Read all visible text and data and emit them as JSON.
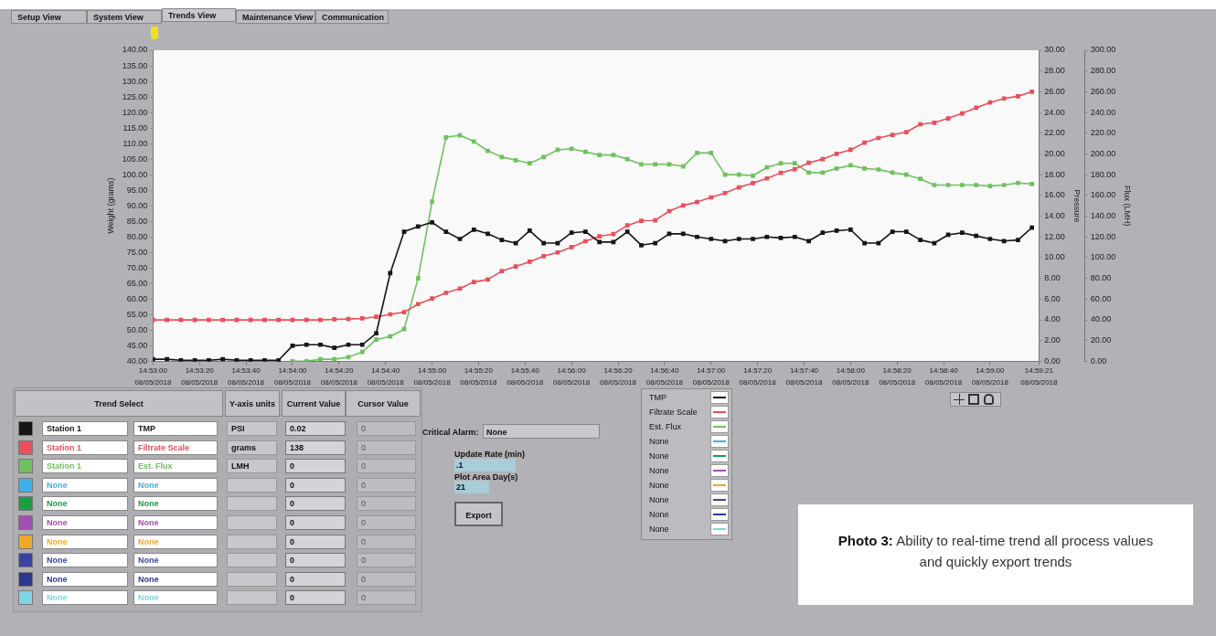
{
  "chart_data": {
    "type": "line",
    "ylabel": "Weight (grams)",
    "y2label": "Pressure",
    "y3label": "Flux (LMH)",
    "x": [
      14.88333,
      14.885,
      14.88667,
      14.88833,
      14.89,
      14.89167,
      14.89333,
      14.895,
      14.89667,
      14.89833,
      14.9,
      14.90167,
      14.90333,
      14.905,
      14.90667,
      14.90833,
      14.91,
      14.91167,
      14.91333,
      14.915,
      14.91667,
      14.91833,
      14.92,
      14.92167,
      14.92333,
      14.925,
      14.92667,
      14.92833,
      14.93,
      14.93167,
      14.93333,
      14.935,
      14.93667,
      14.93833,
      14.94,
      14.94167,
      14.94333,
      14.945,
      14.94667,
      14.94833,
      14.95,
      14.95167,
      14.95333,
      14.955,
      14.95667,
      14.95833,
      14.96,
      14.96167,
      14.96333,
      14.965,
      14.96667,
      14.96833,
      14.97,
      14.97167,
      14.97333,
      14.975,
      14.97667,
      14.97833,
      14.98,
      14.98167,
      14.98333,
      14.985,
      14.98667,
      14.98833
    ],
    "series": [
      {
        "name": "TMP",
        "color": "#151515",
        "axis": "y2",
        "values": [
          0.2,
          0.2,
          0.1,
          0.1,
          0.1,
          0.2,
          0.1,
          0.1,
          0.1,
          0.1,
          1.5,
          1.6,
          1.6,
          1.3,
          1.6,
          1.6,
          2.7,
          8.5,
          12.5,
          13.0,
          13.4,
          12.5,
          11.8,
          12.7,
          12.3,
          11.7,
          11.4,
          12.6,
          11.4,
          11.4,
          12.4,
          12.5,
          11.5,
          11.5,
          12.5,
          11.2,
          11.4,
          12.3,
          12.3,
          12.0,
          11.8,
          11.6,
          11.8,
          11.8,
          12.0,
          11.9,
          12.0,
          11.6,
          12.4,
          12.6,
          12.7,
          11.4,
          11.4,
          12.5,
          12.5,
          11.7,
          11.4,
          12.2,
          12.4,
          12.1,
          11.8,
          11.6,
          11.7,
          12.9
        ]
      },
      {
        "name": "Filtrate Scale",
        "color": "#e8505c",
        "values": [
          53.3,
          53.3,
          53.3,
          53.3,
          53.3,
          53.3,
          53.3,
          53.3,
          53.3,
          53.3,
          53.3,
          53.3,
          53.3,
          53.5,
          53.6,
          53.8,
          54.3,
          55.1,
          55.8,
          58.4,
          60.2,
          62.0,
          63.4,
          65.5,
          66.3,
          69.0,
          70.5,
          72.0,
          73.8,
          75.0,
          76.7,
          78.6,
          80.2,
          80.9,
          83.7,
          85.2,
          85.3,
          88.3,
          90.1,
          91.2,
          92.7,
          94.1,
          95.9,
          97.3,
          98.8,
          100.6,
          101.8,
          103.8,
          105.0,
          106.7,
          108.0,
          110.3,
          111.8,
          112.8,
          113.7,
          116.2,
          116.7,
          118.1,
          119.7,
          121.5,
          123.2,
          124.5,
          125.2,
          126.7
        ]
      },
      {
        "name": "Est. Flux",
        "color": "#70c060",
        "axis": "y3",
        "values": [
          null,
          null,
          null,
          null,
          null,
          null,
          null,
          null,
          null,
          null,
          0,
          0,
          2,
          2,
          4,
          9,
          21,
          24,
          31,
          80,
          154,
          216,
          218,
          212,
          203,
          197,
          194,
          191,
          197,
          204,
          205,
          202,
          199,
          199,
          195,
          190,
          190,
          190,
          188,
          201,
          201,
          180,
          180,
          179,
          187,
          191,
          191,
          182,
          182,
          186,
          189,
          186,
          185,
          182,
          180,
          176,
          170,
          170,
          170,
          170,
          169,
          170,
          172,
          171
        ]
      },
      {
        "name": "None",
        "color": "#40b0e8",
        "values": [
          null,
          null,
          null,
          null,
          null,
          null,
          null,
          null,
          null,
          null,
          null,
          null,
          null,
          null,
          null,
          null,
          null,
          null,
          null,
          null,
          null,
          null,
          null,
          null,
          null,
          null,
          null,
          null,
          null,
          null,
          null,
          null,
          null,
          null,
          null,
          null,
          null,
          null,
          null,
          null,
          null,
          null,
          null,
          null,
          null,
          null,
          null,
          null,
          null,
          null,
          null,
          null,
          null,
          null,
          null,
          null,
          null,
          null,
          null,
          null,
          null,
          null,
          null,
          null
        ]
      },
      {
        "name": "None",
        "color": "#18a040",
        "values": [
          null,
          null,
          null,
          null,
          null,
          null,
          null,
          null,
          null,
          null,
          null,
          null,
          null,
          null,
          null,
          null,
          null,
          null,
          null,
          null,
          null,
          null,
          null,
          null,
          null,
          null,
          null,
          null,
          null,
          null,
          null,
          null,
          null,
          null,
          null,
          null,
          null,
          null,
          null,
          null,
          null,
          null,
          null,
          null,
          null,
          null,
          null,
          null,
          null,
          null,
          null,
          null,
          null,
          null,
          null,
          null,
          null,
          null,
          null,
          null,
          null,
          null,
          null,
          null
        ]
      },
      {
        "name": "None",
        "color": "#a050b0",
        "values": [
          null,
          null,
          null,
          null,
          null,
          null,
          null,
          null,
          null,
          null,
          null,
          null,
          null,
          null,
          null,
          null,
          null,
          null,
          null,
          null,
          null,
          null,
          null,
          null,
          null,
          null,
          null,
          null,
          null,
          null,
          null,
          null,
          null,
          null,
          null,
          null,
          null,
          null,
          null,
          null,
          null,
          null,
          null,
          null,
          null,
          null,
          null,
          null,
          null,
          null,
          null,
          null,
          null,
          null,
          null,
          null,
          null,
          null,
          null,
          null,
          null,
          null,
          null,
          null
        ]
      },
      {
        "name": "None",
        "color": "#f0a828",
        "values": [
          null,
          null,
          null,
          null,
          null,
          null,
          null,
          null,
          null,
          null,
          null,
          null,
          null,
          null,
          null,
          null,
          null,
          null,
          null,
          null,
          null,
          null,
          null,
          null,
          null,
          null,
          null,
          null,
          null,
          null,
          null,
          null,
          null,
          null,
          null,
          null,
          null,
          null,
          null,
          null,
          null,
          null,
          null,
          null,
          null,
          null,
          null,
          null,
          null,
          null,
          null,
          null,
          null,
          null,
          null,
          null,
          null,
          null,
          null,
          null,
          null,
          null,
          null,
          null
        ]
      },
      {
        "name": "None",
        "color": "#3a44a0",
        "values": [
          null,
          null,
          null,
          null,
          null,
          null,
          null,
          null,
          null,
          null,
          null,
          null,
          null,
          null,
          null,
          null,
          null,
          null,
          null,
          null,
          null,
          null,
          null,
          null,
          null,
          null,
          null,
          null,
          null,
          null,
          null,
          null,
          null,
          null,
          null,
          null,
          null,
          null,
          null,
          null,
          null,
          null,
          null,
          null,
          null,
          null,
          null,
          null,
          null,
          null,
          null,
          null,
          null,
          null,
          null,
          null,
          null,
          null,
          null,
          null,
          null,
          null,
          null,
          null
        ]
      },
      {
        "name": "None",
        "color": "#283890",
        "values": [
          null,
          null,
          null,
          null,
          null,
          null,
          null,
          null,
          null,
          null,
          null,
          null,
          null,
          null,
          null,
          null,
          null,
          null,
          null,
          null,
          null,
          null,
          null,
          null,
          null,
          null,
          null,
          null,
          null,
          null,
          null,
          null,
          null,
          null,
          null,
          null,
          null,
          null,
          null,
          null,
          null,
          null,
          null,
          null,
          null,
          null,
          null,
          null,
          null,
          null,
          null,
          null,
          null,
          null,
          null,
          null,
          null,
          null,
          null,
          null,
          null,
          null,
          null,
          null
        ]
      },
      {
        "name": "None",
        "color": "#80d4e4",
        "values": [
          null,
          null,
          null,
          null,
          null,
          null,
          null,
          null,
          null,
          null,
          null,
          null,
          null,
          null,
          null,
          null,
          null,
          null,
          null,
          null,
          null,
          null,
          null,
          null,
          null,
          null,
          null,
          null,
          null,
          null,
          null,
          null,
          null,
          null,
          null,
          null,
          null,
          null,
          null,
          null,
          null,
          null,
          null,
          null,
          null,
          null,
          null,
          null,
          null,
          null,
          null,
          null,
          null,
          null,
          null,
          null,
          null,
          null,
          null,
          null,
          null,
          null,
          null,
          null
        ]
      }
    ],
    "xlim": [
      14.88333,
      14.98917
    ],
    "xticks": [
      {
        "value": 14.88333,
        "label": "14:53:00"
      },
      {
        "value": 14.88889,
        "label": "14:53:20"
      },
      {
        "value": 14.89444,
        "label": "14:53:40"
      },
      {
        "value": 14.9,
        "label": "14:54:00"
      },
      {
        "value": 14.90556,
        "label": "14:54:20"
      },
      {
        "value": 14.91111,
        "label": "14:54:40"
      },
      {
        "value": 14.91667,
        "label": "14:55:00"
      },
      {
        "value": 14.92222,
        "label": "14:55:20"
      },
      {
        "value": 14.92778,
        "label": "14:55:40"
      },
      {
        "value": 14.93333,
        "label": "14:56:00"
      },
      {
        "value": 14.93889,
        "label": "14:56:20"
      },
      {
        "value": 14.94444,
        "label": "14:56:40"
      },
      {
        "value": 14.95,
        "label": "14:57:00"
      },
      {
        "value": 14.95556,
        "label": "14:57:20"
      },
      {
        "value": 14.96111,
        "label": "14:57:40"
      },
      {
        "value": 14.96667,
        "label": "14:58:00"
      },
      {
        "value": 14.97222,
        "label": "14:58:20"
      },
      {
        "value": 14.97778,
        "label": "14:58:40"
      },
      {
        "value": 14.98333,
        "label": "14:59:00"
      },
      {
        "value": 14.98917,
        "label": "14:59:21"
      }
    ],
    "ylim": [
      40,
      140
    ],
    "yticks": [
      {
        "value": 40,
        "label": "40.00"
      },
      {
        "value": 45,
        "label": "45.00"
      },
      {
        "value": 50,
        "label": "50.00"
      },
      {
        "value": 55,
        "label": "55.00"
      },
      {
        "value": 60,
        "label": "60.00"
      },
      {
        "value": 65,
        "label": "65.00"
      },
      {
        "value": 70,
        "label": "70.00"
      },
      {
        "value": 75,
        "label": "75.00"
      },
      {
        "value": 80,
        "label": "80.00"
      },
      {
        "value": 85,
        "label": "85.00"
      },
      {
        "value": 90,
        "label": "90.00"
      },
      {
        "value": 95,
        "label": "95.00"
      },
      {
        "value": 100,
        "label": "100.00"
      },
      {
        "value": 105,
        "label": "105.00"
      },
      {
        "value": 110,
        "label": "110.00"
      },
      {
        "value": 115,
        "label": "115.00"
      },
      {
        "value": 120,
        "label": "120.00"
      },
      {
        "value": 125,
        "label": "125.00"
      },
      {
        "value": 130,
        "label": "130.00"
      },
      {
        "value": 135,
        "label": "135.00"
      },
      {
        "value": 140,
        "label": "140.00"
      }
    ],
    "y2lim": [
      0,
      30
    ],
    "y2ticks": [
      {
        "value": 0,
        "label": "0.00"
      },
      {
        "value": 2,
        "label": "2.00"
      },
      {
        "value": 4,
        "label": "4.00"
      },
      {
        "value": 6,
        "label": "6.00"
      },
      {
        "value": 8,
        "label": "8.00"
      },
      {
        "value": 10,
        "label": "10.00"
      },
      {
        "value": 12,
        "label": "12.00"
      },
      {
        "value": 14,
        "label": "14.00"
      },
      {
        "value": 16,
        "label": "16.00"
      },
      {
        "value": 18,
        "label": "18.00"
      },
      {
        "value": 20,
        "label": "20.00"
      },
      {
        "value": 22,
        "label": "22.00"
      },
      {
        "value": 24,
        "label": "24.00"
      },
      {
        "value": 26,
        "label": "26.00"
      },
      {
        "value": 28,
        "label": "28.00"
      },
      {
        "value": 30,
        "label": "30.00"
      }
    ],
    "y3lim": [
      0,
      300
    ],
    "y3ticks": [
      {
        "value": 0,
        "label": "0.00"
      },
      {
        "value": 20,
        "label": "20.00"
      },
      {
        "value": 40,
        "label": "40.00"
      },
      {
        "value": 60,
        "label": "60.00"
      },
      {
        "value": 80,
        "label": "80.00"
      },
      {
        "value": 100,
        "label": "100.00"
      },
      {
        "value": 120,
        "label": "120.00"
      },
      {
        "value": 140,
        "label": "140.00"
      },
      {
        "value": 160,
        "label": "160.00"
      },
      {
        "value": 180,
        "label": "180.00"
      },
      {
        "value": 200,
        "label": "200.00"
      },
      {
        "value": 220,
        "label": "220.00"
      },
      {
        "value": 240,
        "label": "240.00"
      },
      {
        "value": 260,
        "label": "260.00"
      },
      {
        "value": 280,
        "label": "280.00"
      },
      {
        "value": 300,
        "label": "300.00"
      }
    ],
    "grid": false,
    "legend": "bottom",
    "marker": "square",
    "line_style": "solid",
    "annotations": [
      "08/05/2018",
      "Setup View",
      "System View",
      "Trends View",
      "Maintenance View",
      "Communication",
      "Trend Select",
      "Y-axis units",
      "Current Value",
      "Cursor Value",
      "Station 1",
      "PSI",
      "0.02",
      "0",
      "Station 1",
      "grams",
      "138",
      "0",
      "Station 1",
      "LMH",
      "0",
      "0",
      "None",
      "0",
      "0",
      "None",
      "0",
      "0",
      "None",
      "0",
      "0",
      "None",
      "0",
      "0",
      "None",
      "0",
      "0",
      "None",
      "0",
      "0",
      "None",
      "0",
      "0",
      "Critical Alarm:",
      "None",
      "Update Rate (min)",
      ".1",
      "Plot Area Day(s)",
      "21",
      "Export",
      "Photo 3:",
      "Ability to real-time trend all process values and quickly export trends"
    ]
  }
}
